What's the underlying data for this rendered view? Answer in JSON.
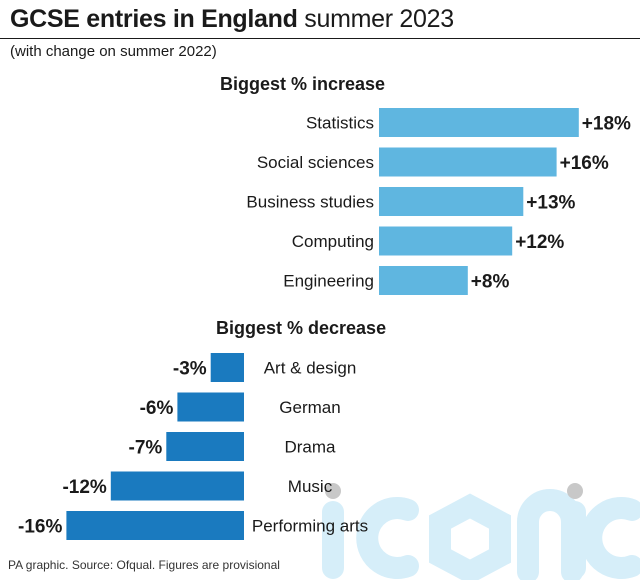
{
  "title": {
    "bold": "GCSE entries in England",
    "light": "summer 2023"
  },
  "subtitle": "(with change on summer 2022)",
  "source": "PA graphic. Source: Ofqual. Figures are provisional",
  "watermark": "iconic",
  "colors": {
    "increase": "#5fb6e0",
    "decrease": "#1a7abf",
    "text": "#1a1a1a",
    "watermark": "#cfeaf7"
  },
  "chart_data": [
    {
      "type": "bar",
      "orientation": "horizontal",
      "title": "Biggest % increase",
      "categories": [
        "Statistics",
        "Social sciences",
        "Business studies",
        "Computing",
        "Engineering"
      ],
      "values": [
        18,
        16,
        13,
        12,
        8
      ],
      "labels": [
        "+18%",
        "+16%",
        "+13%",
        "+12%",
        "+8%"
      ],
      "unit": "%"
    },
    {
      "type": "bar",
      "orientation": "horizontal",
      "title": "Biggest % decrease",
      "categories": [
        "Art & design",
        "German",
        "Drama",
        "Music",
        "Performing arts"
      ],
      "values": [
        -3,
        -6,
        -7,
        -12,
        -16
      ],
      "labels": [
        "-3%",
        "-6%",
        "-7%",
        "-12%",
        "-16%"
      ],
      "unit": "%"
    }
  ]
}
